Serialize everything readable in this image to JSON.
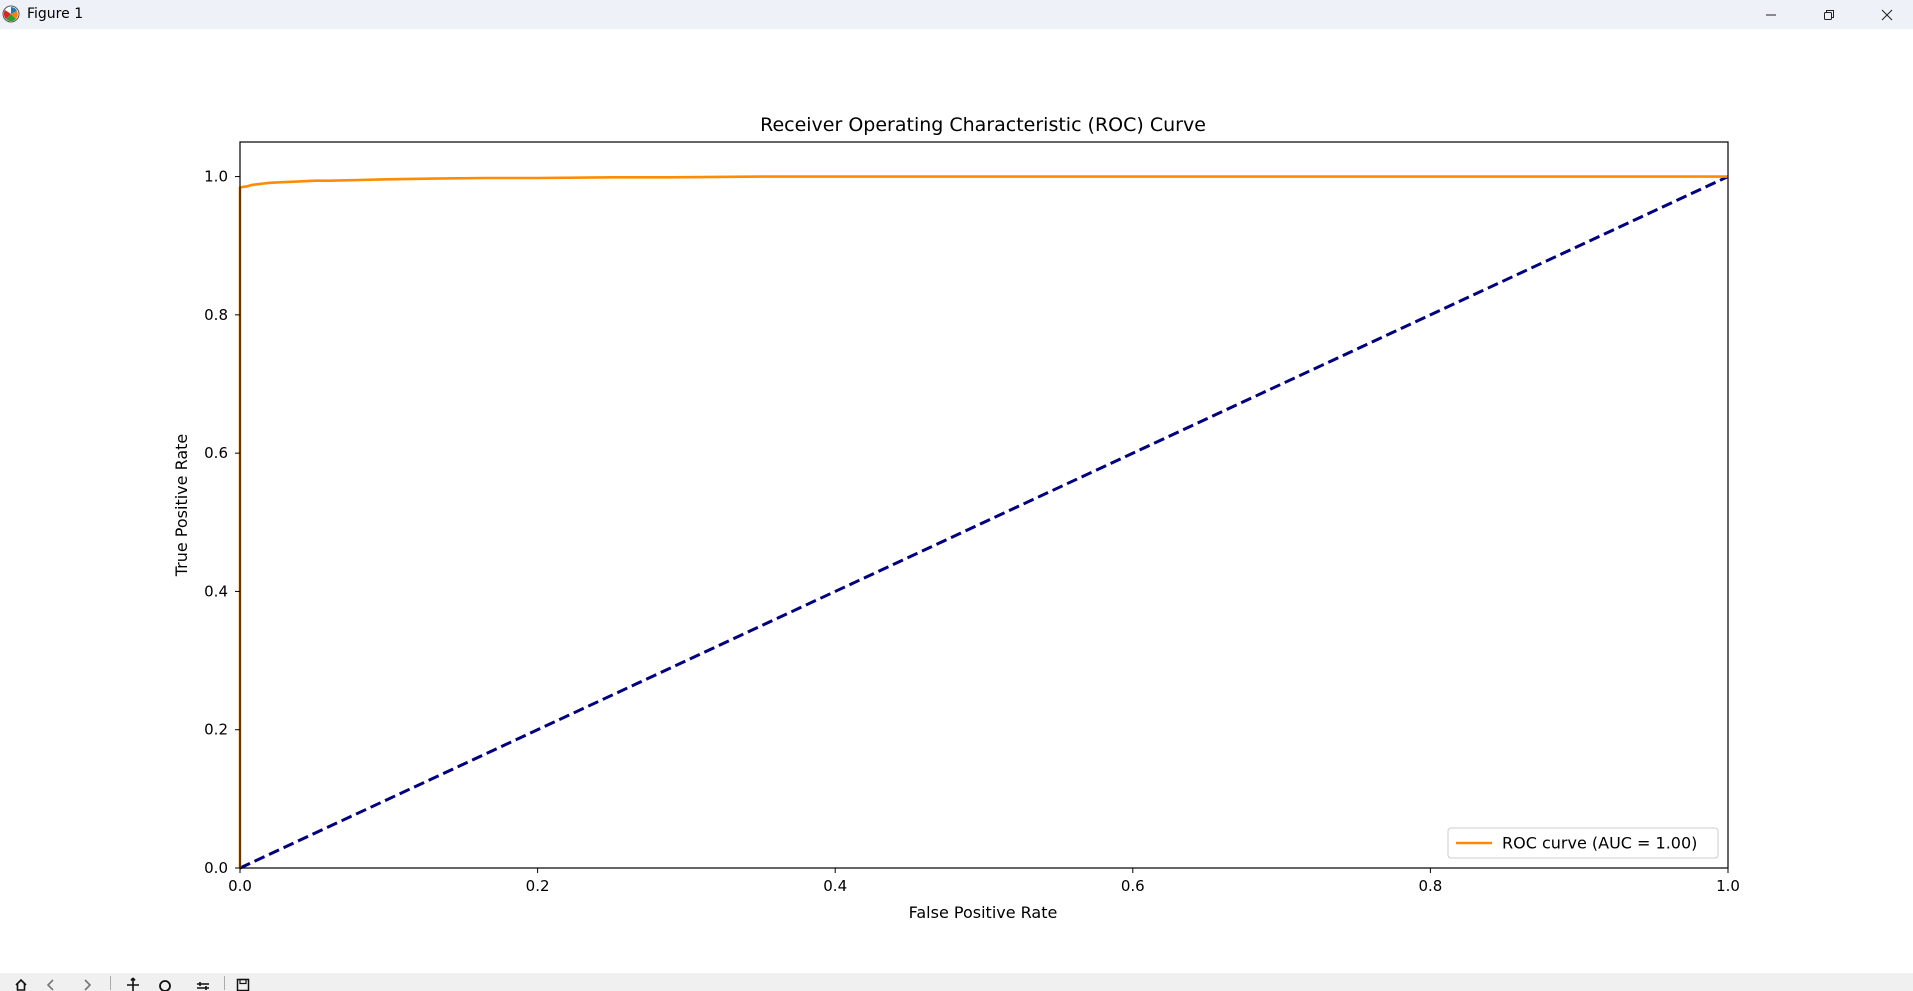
{
  "window": {
    "title": "Figure 1",
    "controls": [
      "minimize-icon",
      "restore-icon",
      "close-icon"
    ]
  },
  "toolbar": {
    "icons": [
      "home-icon",
      "back-icon",
      "forward-icon",
      "pan-icon",
      "zoom-icon",
      "configure-icon",
      "save-icon"
    ],
    "coords": ""
  },
  "colors": {
    "roc_line": "#ff8c00",
    "diagonal": "#000080",
    "titlebar": "#eef2f8",
    "toolbar": "#f0f0f0"
  },
  "chart_data": {
    "type": "line",
    "title": "Receiver Operating Characteristic (ROC) Curve",
    "xlabel": "False Positive Rate",
    "ylabel": "True Positive Rate",
    "xlim": [
      0.0,
      1.0
    ],
    "ylim": [
      0.0,
      1.05
    ],
    "xticks": [
      0.0,
      0.2,
      0.4,
      0.6,
      0.8,
      1.0
    ],
    "yticks": [
      0.0,
      0.2,
      0.4,
      0.6,
      0.8,
      1.0
    ],
    "xtick_labels": [
      "0.0",
      "0.2",
      "0.4",
      "0.6",
      "0.8",
      "1.0"
    ],
    "ytick_labels": [
      "0.0",
      "0.2",
      "0.4",
      "0.6",
      "0.8",
      "1.0"
    ],
    "legend_position": "lower-right",
    "grid": false,
    "series": [
      {
        "name": "ROC curve (AUC = 1.00)",
        "style": "solid",
        "color": "#ff8c00",
        "x": [
          0.0,
          0.0,
          0.002,
          0.005,
          0.008,
          0.012,
          0.016,
          0.02,
          0.03,
          0.04,
          0.05,
          0.06,
          0.08,
          0.1,
          0.13,
          0.165,
          0.2,
          0.25,
          0.29,
          0.35,
          0.5,
          0.7,
          0.9,
          1.0
        ],
        "y": [
          0.0,
          0.984,
          0.985,
          0.986,
          0.988,
          0.989,
          0.99,
          0.991,
          0.992,
          0.993,
          0.994,
          0.994,
          0.995,
          0.996,
          0.997,
          0.998,
          0.998,
          0.999,
          0.999,
          1.0,
          1.0,
          1.0,
          1.0,
          1.0
        ]
      },
      {
        "name": "",
        "style": "dashed",
        "color": "#000080",
        "x": [
          0.0,
          1.0
        ],
        "y": [
          0.0,
          1.0
        ]
      }
    ]
  }
}
